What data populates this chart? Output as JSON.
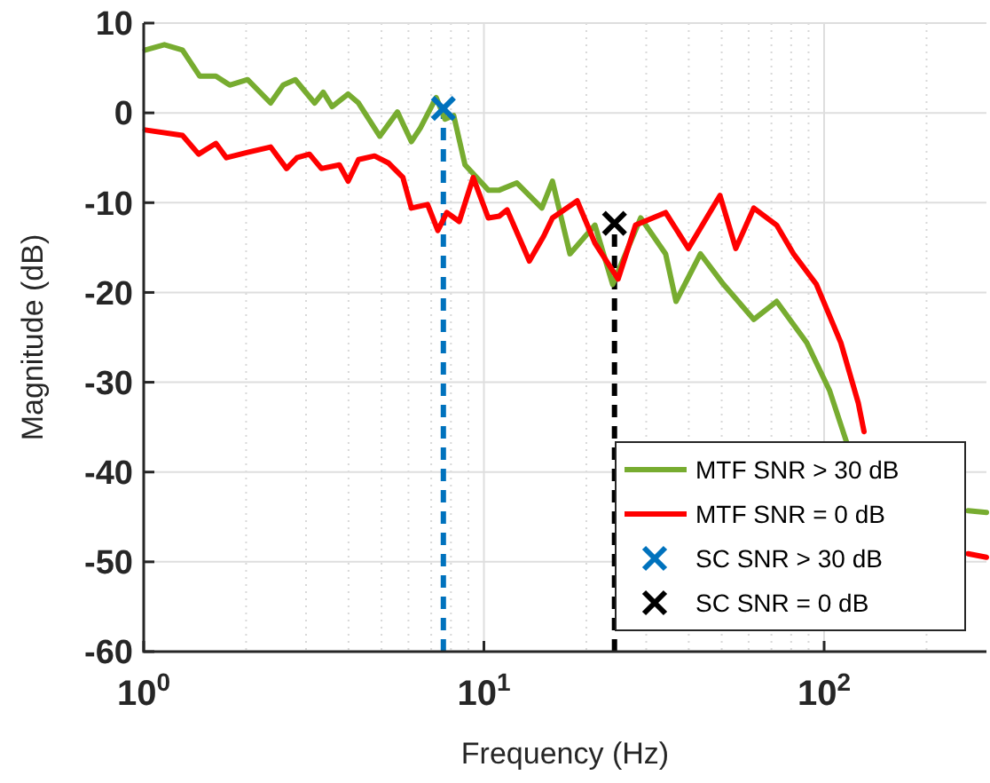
{
  "chart_data": {
    "type": "line",
    "xlabel": "Frequency (Hz)",
    "ylabel": "Magnitude (dB)",
    "log": "x",
    "grid": true,
    "legend": "bottom right",
    "line_style": "solid",
    "xlim": [
      1,
      300
    ],
    "xticks": [
      {
        "value": 1,
        "label": "10$^{0}$"
      },
      {
        "value": 10,
        "label": "10$^{1}$"
      },
      {
        "value": 100,
        "label": "10$^{2}$"
      }
    ],
    "ylim": [
      -60,
      10
    ],
    "yticks": [
      -60,
      -50,
      -40,
      -30,
      -20,
      -10,
      0,
      10
    ],
    "series": [
      {
        "name": "MTF SNR > 30 dB",
        "color": "#77ac30",
        "x": [
          1.01,
          1.15,
          1.3,
          1.46,
          1.63,
          1.79,
          2.02,
          2.36,
          2.57,
          2.79,
          3.18,
          3.37,
          3.58,
          3.99,
          4.28,
          4.94,
          5.57,
          6.12,
          6.5,
          7.24,
          7.68,
          8.15,
          8.8,
          9.53,
          10.3,
          11.1,
          12.5,
          14.8,
          15.9,
          17.9,
          21.2,
          23.9,
          28.9,
          34.2,
          36.7,
          43.3,
          50.6,
          62.1,
          72.5,
          88.9,
          103.7,
          116.7,
          120,
          265,
          300
        ],
        "values": [
          7.0,
          7.6,
          7.0,
          4.1,
          4.1,
          3.1,
          3.7,
          1.1,
          3.1,
          3.7,
          1.1,
          2.3,
          0.7,
          2.1,
          1.1,
          -2.6,
          0.1,
          -3.2,
          -1.7,
          1.7,
          -0.7,
          -0.3,
          -5.8,
          -7.2,
          -8.6,
          -8.6,
          -7.8,
          -10.6,
          -7.6,
          -15.7,
          -12.5,
          -19.1,
          -11.7,
          -15.7,
          -21,
          -15.7,
          -19.1,
          -23,
          -21,
          -25.6,
          -30.9,
          -36.8,
          null,
          -44.3,
          -44.5
        ]
      },
      {
        "name": "MTF SNR = 0 dB",
        "color": "#ff0000",
        "x": [
          1.01,
          1.3,
          1.45,
          1.63,
          1.75,
          2.02,
          2.36,
          2.63,
          2.82,
          3.07,
          3.33,
          3.76,
          3.99,
          4.28,
          4.77,
          5.25,
          5.78,
          6.12,
          6.83,
          7.32,
          7.78,
          8.46,
          9.3,
          10.3,
          11.1,
          11.7,
          13.6,
          15,
          15.9,
          18.8,
          21.2,
          24.8,
          27.9,
          34.2,
          39.9,
          49.4,
          55,
          62.1,
          72.5,
          81.3,
          94.9,
          112,
          126,
          131,
          140,
          265,
          300
        ],
        "values": [
          -1.9,
          -2.5,
          -4.6,
          -3.4,
          -5,
          -4.4,
          -3.8,
          -6.2,
          -5,
          -4.6,
          -6.2,
          -5.8,
          -7.6,
          -5.2,
          -4.8,
          -5.6,
          -7.2,
          -10.6,
          -10.2,
          -13.1,
          -11.1,
          -12.1,
          -7.2,
          -11.7,
          -11.5,
          -10.8,
          -16.5,
          -13.7,
          -11.7,
          -9.8,
          -14.5,
          -18.5,
          -12.5,
          -11.1,
          -15.1,
          -9.2,
          -15.1,
          -10.6,
          -12.5,
          -15.7,
          -19.1,
          -25.6,
          -32.3,
          -35.5,
          null,
          -49.1,
          -49.5
        ]
      },
      {
        "name": "SC SNR > 30 dB",
        "type": "scatter",
        "marker": "cross",
        "color": "#0072bd",
        "x": [
          7.6
        ],
        "values": [
          0.5
        ]
      },
      {
        "name": "SC SNR = 0 dB",
        "type": "scatter",
        "marker": "cross",
        "color": "#000000",
        "x": [
          24.2
        ],
        "values": [
          -12.3
        ]
      }
    ],
    "ref_lines": [
      {
        "axis": "x",
        "value": 7.6,
        "color": "#0072bd",
        "line_style": "dashed"
      },
      {
        "axis": "x",
        "value": 24.2,
        "color": "#000000",
        "line_style": "dashed"
      }
    ]
  }
}
